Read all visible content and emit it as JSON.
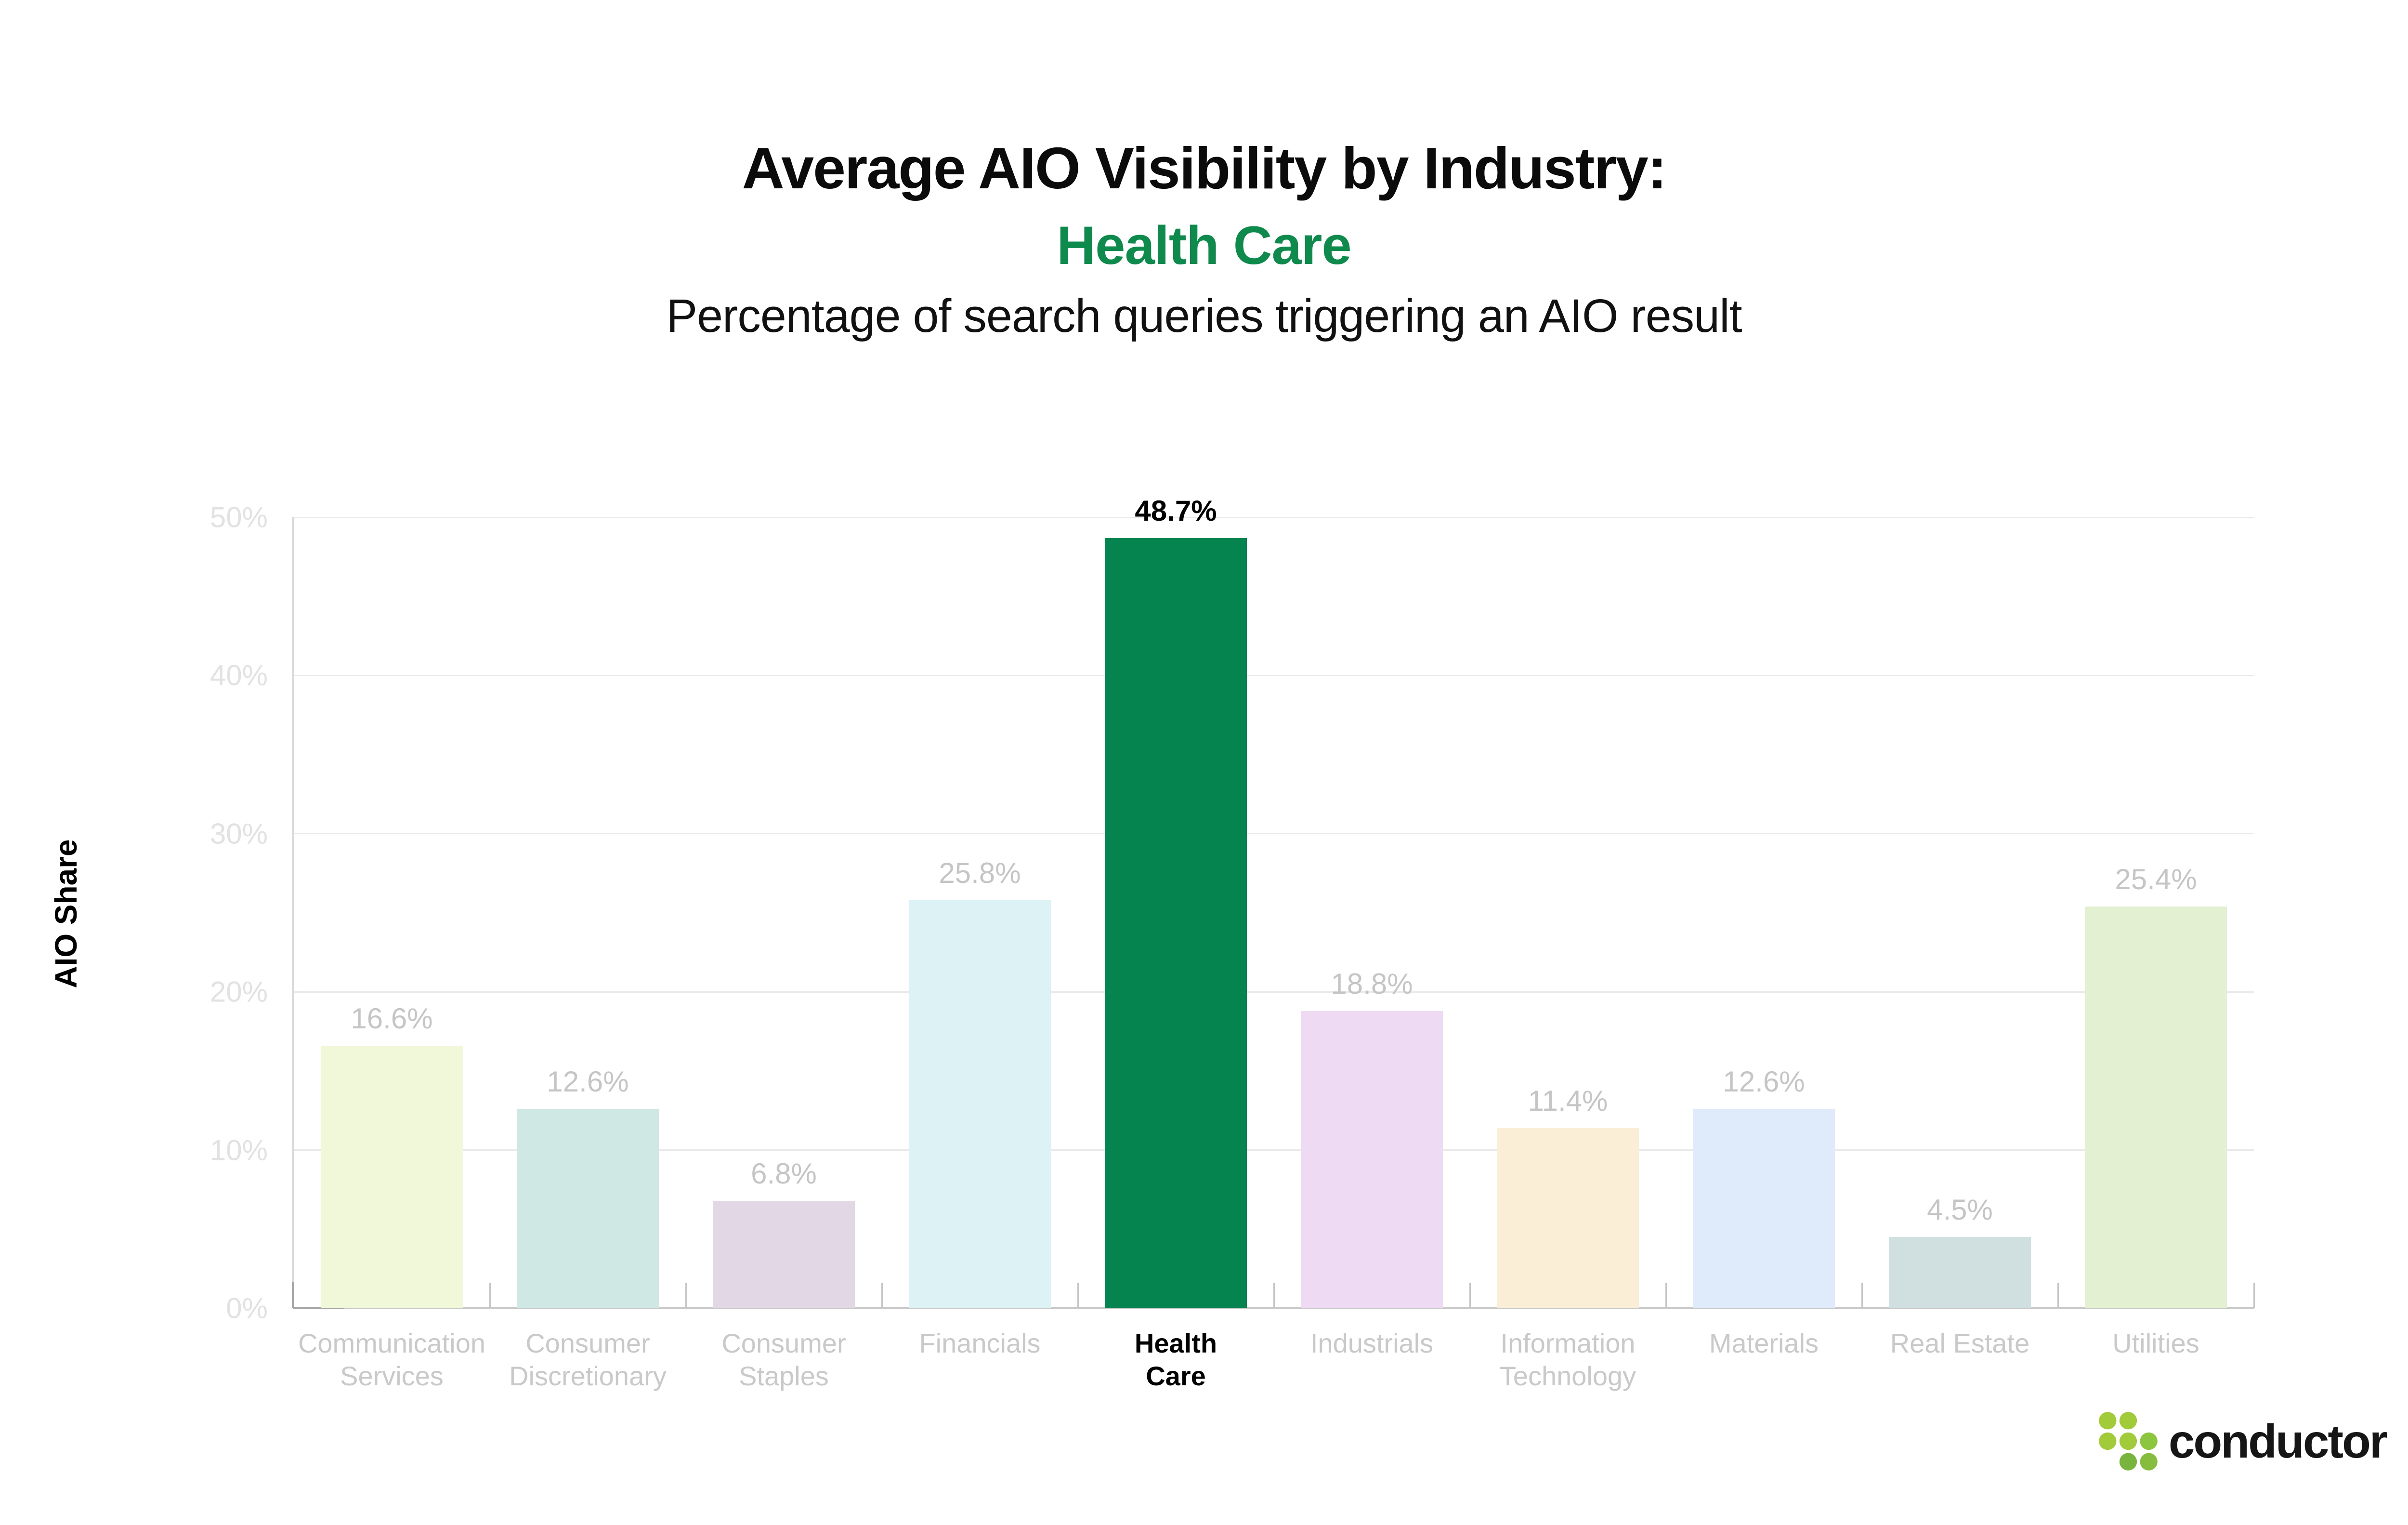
{
  "title": {
    "line1": "Average AIO Visibility by Industry:",
    "line2_highlight": "Health Care",
    "subtitle": "Percentage of search queries triggering an AIO result"
  },
  "colors": {
    "highlight_text_green": "#0e8a4c",
    "highlight_bar_green": "#058450",
    "muted_label_gray": "#c5c5c5",
    "tick_label_gray": "#e2e2e2",
    "gridline_gray": "#e9e9e9",
    "axis_gray": "#d9d9d9"
  },
  "chart_data": {
    "type": "bar",
    "title": "Average AIO Visibility by Industry: Health Care",
    "subtitle": "Percentage of search queries triggering an AIO result",
    "ylabel": "AIO Share",
    "xlabel": "",
    "ylim": [
      0,
      50
    ],
    "ytick_labels": [
      "0%",
      "10%",
      "20%",
      "30%",
      "40%",
      "50%"
    ],
    "grid": "horizontal",
    "legend": "none",
    "categories": [
      "Communication Services",
      "Consumer Discretionary",
      "Consumer Staples",
      "Financials",
      "Health Care",
      "Industrials",
      "Information Technology",
      "Materials",
      "Real Estate",
      "Utilities"
    ],
    "category_label_lines": [
      [
        "Communication",
        "Services"
      ],
      [
        "Consumer",
        "Discretionary"
      ],
      [
        "Consumer",
        "Staples"
      ],
      [
        "Financials"
      ],
      [
        "Health",
        "Care"
      ],
      [
        "Industrials"
      ],
      [
        "Information",
        "Technology"
      ],
      [
        "Materials"
      ],
      [
        "Real Estate"
      ],
      [
        "Utilities"
      ]
    ],
    "values": [
      16.6,
      12.6,
      6.8,
      25.8,
      48.7,
      18.8,
      11.4,
      12.6,
      4.5,
      25.4
    ],
    "value_labels": [
      "16.6%",
      "12.6%",
      "6.8%",
      "25.8%",
      "48.7%",
      "18.8%",
      "11.4%",
      "12.6%",
      "4.5%",
      "25.4%"
    ],
    "bar_colors": [
      "#f1f8da",
      "#d0e8e4",
      "#e2d7e4",
      "#dcf2f5",
      "#058450",
      "#eedaf2",
      "#fbeed6",
      "#dfeafa",
      "#d0e0e1",
      "#e3f0d2"
    ],
    "highlight_index": 4
  },
  "footer": {
    "brand": "conductor",
    "logo_icon": "conductor-dots-logo",
    "logo_dot_colors": [
      "#a2cb3a",
      "#8cc63f",
      "#79b53e",
      "#86bd3f"
    ]
  }
}
